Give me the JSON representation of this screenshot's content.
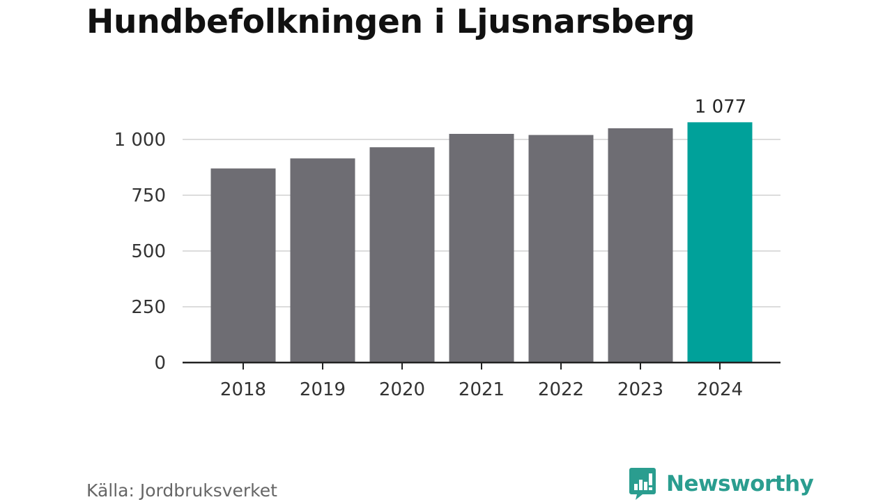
{
  "header": {
    "title": "Hundbefolkningen i Ljusnarsberg"
  },
  "chart_data": {
    "type": "bar",
    "title": "Hundbefolkningen i Ljusnarsberg",
    "xlabel": "",
    "ylabel": "",
    "categories": [
      "2018",
      "2019",
      "2020",
      "2021",
      "2022",
      "2023",
      "2024"
    ],
    "values": [
      870,
      915,
      965,
      1025,
      1020,
      1050,
      1077
    ],
    "ylim": [
      0,
      1000
    ],
    "yticks": [
      0,
      250,
      500,
      750,
      1000
    ],
    "ytick_labels": [
      "0",
      "250",
      "500",
      "750",
      "1 000"
    ],
    "grid": true,
    "highlight_index": 6,
    "data_labels": [
      {
        "index": 6,
        "text": "1 077"
      }
    ],
    "colors": {
      "bar": "#6e6d73",
      "highlight": "#00a19a",
      "grid": "#dcdcdc",
      "axis": "#222222",
      "text": "#333333"
    }
  },
  "footer": {
    "source": "Källa: Jordbruksverket",
    "brand": "Newsworthy",
    "brand_color": "#2a9d8f",
    "brand_icon": "bar-chart-speech-bubble-icon"
  }
}
